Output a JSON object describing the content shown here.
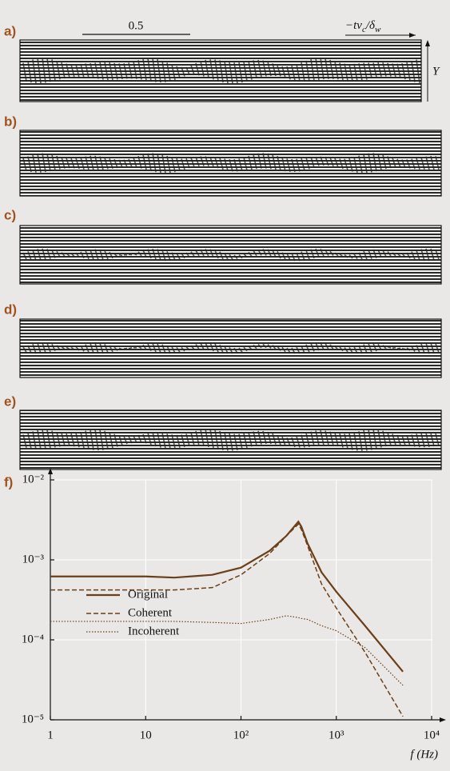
{
  "panels": [
    {
      "label": "a)"
    },
    {
      "label": "b)"
    },
    {
      "label": "c)"
    },
    {
      "label": "d)"
    },
    {
      "label": "e)"
    }
  ],
  "scale_bar": "0.5",
  "time_axis": [
    "−tv",
    "c",
    "/δ",
    "w"
  ],
  "y_axis": "Y",
  "chart_data": {
    "type": "line",
    "label": "f)",
    "x_label": "f (Hz)",
    "log_x": true,
    "log_y": true,
    "grid": true,
    "x": [
      1,
      10,
      20,
      50,
      100,
      200,
      300,
      400,
      430,
      500,
      700,
      1000,
      2000,
      5000
    ],
    "series": [
      {
        "name": "Original",
        "color": "#6b3f17",
        "dash": "solid",
        "values": [
          0.00062,
          0.00062,
          0.0006,
          0.00065,
          0.0008,
          0.0013,
          0.002,
          0.003,
          0.0026,
          0.0016,
          0.0007,
          0.0004,
          0.00015,
          4e-05
        ]
      },
      {
        "name": "Coherent",
        "color": "#6b3f17",
        "dash": "dashed",
        "values": [
          0.00042,
          0.00042,
          0.00042,
          0.00045,
          0.00065,
          0.0012,
          0.002,
          0.0028,
          0.0024,
          0.0015,
          0.0005,
          0.00025,
          7e-05,
          1.1e-05
        ]
      },
      {
        "name": "Incoherent",
        "color": "#6b3f17",
        "dash": "dotted",
        "values": [
          0.00017,
          0.00017,
          0.00017,
          0.000165,
          0.00016,
          0.00018,
          0.0002,
          0.00019,
          0.000185,
          0.00018,
          0.00015,
          0.00013,
          8e-05,
          2.7e-05
        ]
      }
    ],
    "xlim": [
      1,
      10000
    ],
    "ylim": [
      1e-05,
      0.01
    ],
    "xticks": [
      1,
      10,
      {
        "value": 100,
        "label": "10²"
      },
      {
        "value": 1000,
        "label": "10³"
      },
      {
        "value": 10000,
        "label": "10⁴"
      }
    ],
    "yticks": [
      {
        "value": 1e-05,
        "label": "10⁻⁵"
      },
      {
        "value": 0.0001,
        "label": "10⁻⁴"
      },
      {
        "value": 0.001,
        "label": "10⁻³"
      },
      {
        "value": 0.01,
        "label": "10⁻²"
      }
    ]
  }
}
